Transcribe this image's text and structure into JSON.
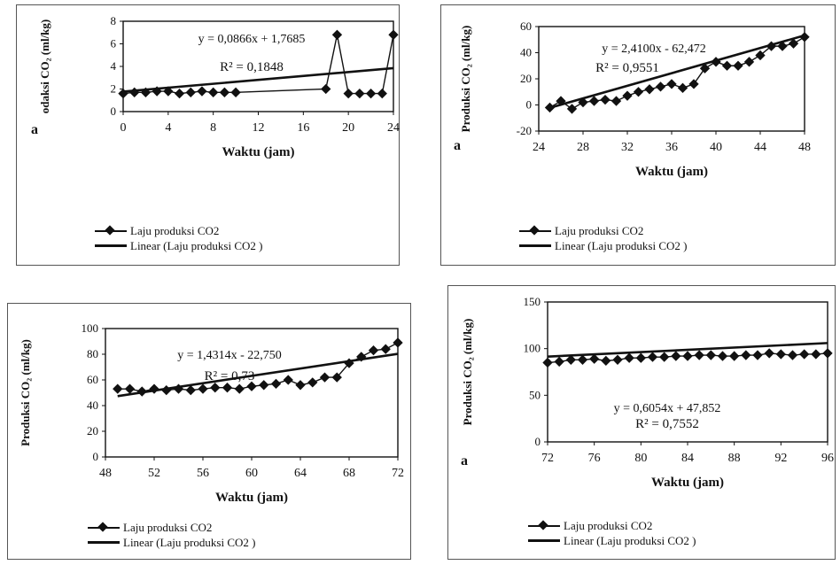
{
  "chart_data": [
    {
      "type": "scatter",
      "panel_letter": "a",
      "title": "",
      "xlabel": "Waktu (jam)",
      "ylabel": "odaksi CO₂ (ml/kg)",
      "xlim": [
        0,
        24
      ],
      "ylim": [
        0,
        8
      ],
      "xticks": [
        "0",
        "4",
        "8",
        "12",
        "16",
        "20",
        "24"
      ],
      "yticks": [
        "0",
        "2",
        "4",
        "6",
        "8"
      ],
      "equation": "y = 0,0866x + 1,7685",
      "r2": "R² = 0,1848",
      "trendline": {
        "slope": 0.0866,
        "intercept": 1.7685
      },
      "series": [
        {
          "name": "Laju produksi CO2",
          "x": [
            0,
            1,
            2,
            3,
            4,
            5,
            6,
            7,
            8,
            9,
            10,
            18,
            19,
            20,
            21,
            22,
            23,
            24
          ],
          "y": [
            1.6,
            1.7,
            1.7,
            1.8,
            1.8,
            1.6,
            1.7,
            1.8,
            1.7,
            1.7,
            1.7,
            2.0,
            6.8,
            1.6,
            1.6,
            1.6,
            1.6,
            6.8
          ]
        }
      ],
      "legend": [
        "Laju produksi CO2",
        "Linear (Laju produksi CO2 )"
      ]
    },
    {
      "type": "scatter",
      "panel_letter": "a",
      "title": "",
      "xlabel": "Waktu (jam)",
      "ylabel": "Produksi CO₂ (ml/kg)",
      "xlim": [
        24,
        48
      ],
      "ylim": [
        -20,
        60
      ],
      "xticks": [
        "24",
        "28",
        "32",
        "36",
        "40",
        "44",
        "48"
      ],
      "yticks": [
        "-20",
        "0",
        "20",
        "40",
        "60"
      ],
      "equation": "y = 2,4100x - 62,472",
      "r2": "R² = 0,9551",
      "trendline": {
        "slope": 2.41,
        "intercept": -62.472
      },
      "series": [
        {
          "name": "Laju produksi CO2",
          "x": [
            25,
            26,
            27,
            28,
            29,
            30,
            31,
            32,
            33,
            34,
            35,
            36,
            37,
            38,
            39,
            40,
            41,
            42,
            43,
            44,
            45,
            46,
            47,
            48
          ],
          "y": [
            -2,
            3,
            -3,
            2,
            3,
            4,
            3,
            7,
            10,
            12,
            14,
            16,
            13,
            16,
            28,
            33,
            30,
            30,
            33,
            38,
            45,
            45,
            47,
            52
          ]
        }
      ],
      "legend": [
        "Laju produksi CO2",
        "Linear (Laju produksi CO2 )"
      ]
    },
    {
      "type": "scatter",
      "panel_letter": "",
      "title": "",
      "xlabel": "Waktu (jam)",
      "ylabel": "Produksi CO₂ (ml/kg)",
      "xlim": [
        48,
        72
      ],
      "ylim": [
        0,
        100
      ],
      "xticks": [
        "48",
        "52",
        "56",
        "60",
        "64",
        "68",
        "72"
      ],
      "yticks": [
        "0",
        "20",
        "40",
        "60",
        "80",
        "100"
      ],
      "equation": "y = 1,4314x - 22,750",
      "r2": "R² = 0,73",
      "trendline": {
        "slope": 1.4314,
        "intercept": -22.75
      },
      "series": [
        {
          "name": "Laju produksi CO2",
          "x": [
            49,
            50,
            51,
            52,
            53,
            54,
            55,
            56,
            57,
            58,
            59,
            60,
            61,
            62,
            63,
            64,
            65,
            66,
            67,
            68,
            69,
            70,
            71,
            72
          ],
          "y": [
            53,
            53,
            51,
            53,
            52,
            53,
            52,
            53,
            54,
            54,
            53,
            55,
            56,
            57,
            60,
            56,
            58,
            62,
            62,
            73,
            78,
            83,
            84,
            89
          ]
        }
      ],
      "legend": [
        "Laju produksi CO2",
        "Linear (Laju produksi CO2 )"
      ]
    },
    {
      "type": "scatter",
      "panel_letter": "a",
      "title": "",
      "xlabel": "Waktu (jam)",
      "ylabel": "Produksi CO₂ (ml/kg)",
      "xlim": [
        72,
        96
      ],
      "ylim": [
        0,
        150
      ],
      "xticks": [
        "72",
        "76",
        "80",
        "84",
        "88",
        "92",
        "96"
      ],
      "yticks": [
        "0",
        "50",
        "100",
        "150"
      ],
      "equation": "y = 0,6054x + 47,852",
      "r2": "R² = 0,7552",
      "trendline": {
        "slope": 0.6054,
        "intercept": 47.852
      },
      "series": [
        {
          "name": "Laju produksi CO2",
          "x": [
            72,
            73,
            74,
            75,
            76,
            77,
            78,
            79,
            80,
            81,
            82,
            83,
            84,
            85,
            86,
            87,
            88,
            89,
            90,
            91,
            92,
            93,
            94,
            95,
            96
          ],
          "y": [
            85,
            86,
            88,
            88,
            89,
            87,
            88,
            90,
            90,
            91,
            91,
            92,
            92,
            93,
            93,
            92,
            92,
            93,
            93,
            95,
            94,
            93,
            94,
            94,
            95
          ]
        }
      ],
      "legend": [
        "Laju produksi CO2",
        "Linear (Laju produksi CO2 )"
      ]
    }
  ]
}
